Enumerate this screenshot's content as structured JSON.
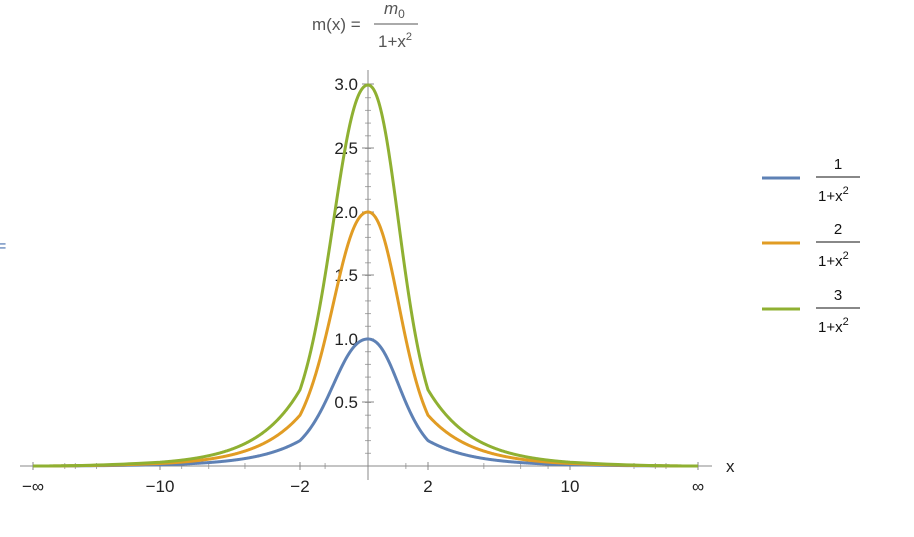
{
  "chart_data": {
    "type": "line",
    "title": {
      "lhs": "m(x) =",
      "numerator": "m",
      "numerator_sub": "0",
      "denominator": "1+x",
      "denominator_sup": "2"
    },
    "xlabel": "x",
    "ylabel": "",
    "xscale": "compactified (−∞ … ∞)",
    "x_ticks": [
      {
        "value": "-inf",
        "label": "−∞"
      },
      {
        "value": -10,
        "label": "−10"
      },
      {
        "value": -2,
        "label": "−2"
      },
      {
        "value": 2,
        "label": "2"
      },
      {
        "value": 10,
        "label": "10"
      },
      {
        "value": "inf",
        "label": "∞"
      }
    ],
    "y_ticks": [
      0.5,
      1.0,
      1.5,
      2.0,
      2.5,
      3.0
    ],
    "y_tick_labels": [
      "0.5",
      "1.0",
      "1.5",
      "2.0",
      "2.5",
      "3.0"
    ],
    "ylim": [
      0,
      3.05
    ],
    "grid": false,
    "legend_position": "right",
    "series": [
      {
        "name_num": "1",
        "name_den": "1+x",
        "name_sup": "2",
        "m0": 1,
        "color": "#5e81b5",
        "points": [
          [
            -10,
            0.0099
          ],
          [
            -2,
            0.2
          ],
          [
            0,
            1.0
          ],
          [
            2,
            0.2
          ],
          [
            10,
            0.0099
          ]
        ]
      },
      {
        "name_num": "2",
        "name_den": "1+x",
        "name_sup": "2",
        "m0": 2,
        "color": "#e19c24",
        "points": [
          [
            -10,
            0.0198
          ],
          [
            -2,
            0.4
          ],
          [
            0,
            2.0
          ],
          [
            2,
            0.4
          ],
          [
            10,
            0.0198
          ]
        ]
      },
      {
        "name_num": "3",
        "name_den": "1+x",
        "name_sup": "2",
        "m0": 3,
        "color": "#8fb032",
        "points": [
          [
            -10,
            0.0297
          ],
          [
            -2,
            0.6
          ],
          [
            0,
            3.0
          ],
          [
            2,
            0.6
          ],
          [
            10,
            0.0297
          ]
        ]
      }
    ]
  },
  "edge_mark": "="
}
